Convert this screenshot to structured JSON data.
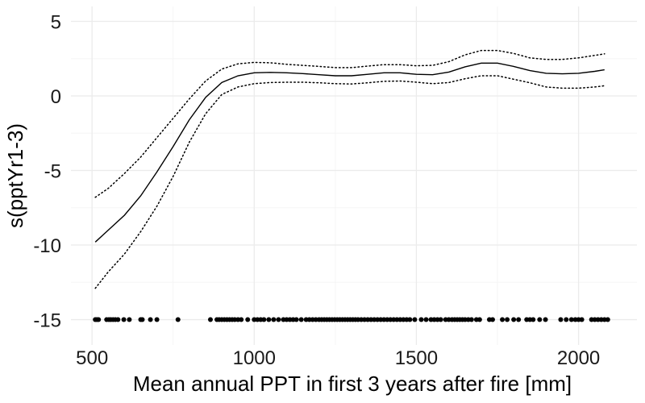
{
  "chart_data": {
    "type": "line",
    "title": "",
    "xlabel": "Mean annual PPT in first 3 years after fire [mm]",
    "ylabel": "s(pptYr1-3)",
    "xlim": [
      435,
      2180
    ],
    "ylim": [
      -16.7,
      6.0
    ],
    "xticks": [
      500,
      1000,
      1500,
      2000
    ],
    "yticks": [
      5,
      0,
      -5,
      -10,
      -15
    ],
    "xtick_labels": [
      "500",
      "1000",
      "1500",
      "2000"
    ],
    "ytick_labels": [
      "5",
      "0",
      "-5",
      "-10",
      "-15"
    ],
    "grid": true,
    "colors": {
      "line": "#000000",
      "grid_major": "#ebebeb",
      "grid_minor": "#f5f5f5",
      "rug": "#000000"
    },
    "series": [
      {
        "role": "estimate",
        "style": "solid",
        "x": [
          510,
          550,
          600,
          650,
          700,
          750,
          800,
          850,
          900,
          950,
          1000,
          1050,
          1100,
          1150,
          1200,
          1250,
          1300,
          1350,
          1400,
          1450,
          1500,
          1550,
          1600,
          1650,
          1700,
          1750,
          1800,
          1850,
          1900,
          1950,
          2000,
          2050,
          2080
        ],
        "y": [
          -9.8,
          -9.0,
          -8.0,
          -6.7,
          -5.1,
          -3.4,
          -1.6,
          -0.1,
          0.9,
          1.35,
          1.55,
          1.58,
          1.55,
          1.5,
          1.42,
          1.35,
          1.35,
          1.45,
          1.55,
          1.55,
          1.45,
          1.42,
          1.6,
          1.95,
          2.2,
          2.2,
          1.98,
          1.7,
          1.52,
          1.48,
          1.52,
          1.65,
          1.75
        ]
      },
      {
        "role": "upper",
        "style": "dotted",
        "x": [
          510,
          550,
          600,
          650,
          700,
          750,
          800,
          850,
          900,
          950,
          1000,
          1050,
          1100,
          1150,
          1200,
          1250,
          1300,
          1350,
          1400,
          1450,
          1500,
          1550,
          1600,
          1650,
          1700,
          1750,
          1800,
          1850,
          1900,
          1950,
          2000,
          2050,
          2080
        ],
        "y": [
          -6.8,
          -6.2,
          -5.2,
          -4.1,
          -2.8,
          -1.5,
          -0.2,
          1.0,
          1.8,
          2.15,
          2.25,
          2.22,
          2.12,
          2.05,
          1.98,
          1.9,
          1.9,
          2.0,
          2.1,
          2.1,
          2.02,
          2.05,
          2.3,
          2.75,
          3.05,
          3.05,
          2.85,
          2.55,
          2.45,
          2.45,
          2.55,
          2.72,
          2.82
        ]
      },
      {
        "role": "lower",
        "style": "dotted",
        "x": [
          510,
          550,
          600,
          650,
          700,
          750,
          800,
          850,
          900,
          950,
          1000,
          1050,
          1100,
          1150,
          1200,
          1250,
          1300,
          1350,
          1400,
          1450,
          1500,
          1550,
          1600,
          1650,
          1700,
          1750,
          1800,
          1850,
          1900,
          1950,
          2000,
          2050,
          2080
        ],
        "y": [
          -12.9,
          -11.8,
          -10.6,
          -9.1,
          -7.4,
          -5.4,
          -3.1,
          -1.2,
          0.1,
          0.6,
          0.82,
          0.9,
          0.92,
          0.92,
          0.88,
          0.82,
          0.8,
          0.88,
          0.98,
          1.0,
          0.92,
          0.82,
          0.9,
          1.15,
          1.35,
          1.35,
          1.12,
          0.88,
          0.6,
          0.52,
          0.52,
          0.6,
          0.68
        ]
      }
    ],
    "rug": {
      "y": -15,
      "x": [
        510,
        515,
        520,
        545,
        552,
        558,
        565,
        572,
        580,
        598,
        615,
        650,
        655,
        680,
        700,
        765,
        865,
        885,
        892,
        900,
        908,
        916,
        924,
        932,
        940,
        950,
        960,
        980,
        1000,
        1010,
        1020,
        1030,
        1045,
        1060,
        1075,
        1090,
        1100,
        1110,
        1120,
        1130,
        1145,
        1160,
        1170,
        1180,
        1190,
        1200,
        1208,
        1216,
        1224,
        1232,
        1240,
        1248,
        1256,
        1264,
        1272,
        1280,
        1288,
        1296,
        1304,
        1312,
        1320,
        1330,
        1340,
        1350,
        1360,
        1370,
        1380,
        1390,
        1400,
        1410,
        1420,
        1430,
        1440,
        1450,
        1460,
        1470,
        1480,
        1495,
        1515,
        1530,
        1545,
        1555,
        1565,
        1575,
        1590,
        1600,
        1610,
        1618,
        1626,
        1634,
        1642,
        1650,
        1660,
        1670,
        1685,
        1695,
        1725,
        1735,
        1765,
        1780,
        1800,
        1815,
        1840,
        1850,
        1860,
        1880,
        1898,
        1945,
        1962,
        1978,
        1990,
        2000,
        2010,
        2040,
        2050,
        2060,
        2070,
        2080,
        2090
      ]
    }
  }
}
